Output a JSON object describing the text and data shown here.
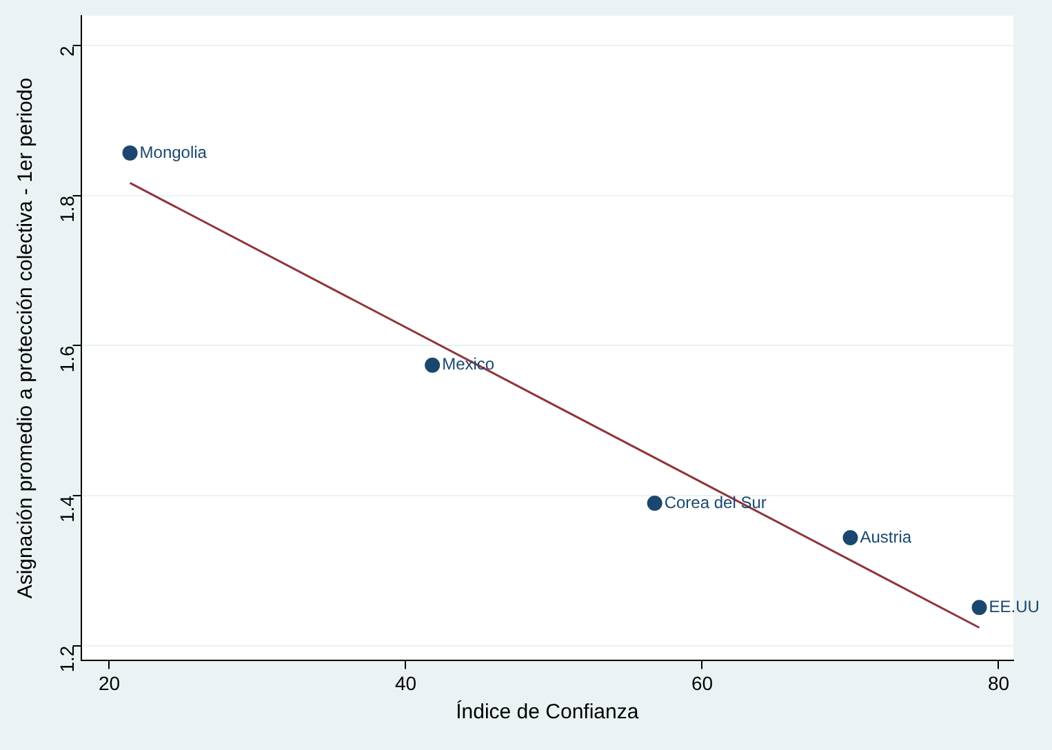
{
  "chart_data": {
    "type": "scatter",
    "xlabel": "Índice de Confianza",
    "ylabel": "Asignación promedio a protección colectiva - 1er periodo",
    "xlim": [
      18.1,
      81
    ],
    "xticks": [
      20,
      40,
      60,
      80
    ],
    "ylim": [
      1.18,
      2.04
    ],
    "yticks": [
      1.2,
      1.4,
      1.6,
      1.8,
      2
    ],
    "grid": "y",
    "legend": false,
    "series": [
      {
        "marker": "circle",
        "color": "#1a476f",
        "x": [
          21.4,
          41.8,
          56.8,
          70.0,
          78.7
        ],
        "values": [
          1.857,
          1.574,
          1.39,
          1.344,
          1.251
        ]
      },
      {
        "type": "line",
        "marker": "none",
        "line_style": "solid",
        "color": "#90353b",
        "x": [
          21.4,
          78.7
        ],
        "values": [
          1.817,
          1.224
        ]
      }
    ],
    "annotations": [
      {
        "text": "Mongolia",
        "x": 21.4,
        "y": 1.857
      },
      {
        "text": "Mexico",
        "x": 41.8,
        "y": 1.574
      },
      {
        "text": "Corea del Sur",
        "x": 56.8,
        "y": 1.39
      },
      {
        "text": "Austria",
        "x": 70.0,
        "y": 1.344
      },
      {
        "text": "EE.UU",
        "x": 78.7,
        "y": 1.251
      }
    ]
  }
}
